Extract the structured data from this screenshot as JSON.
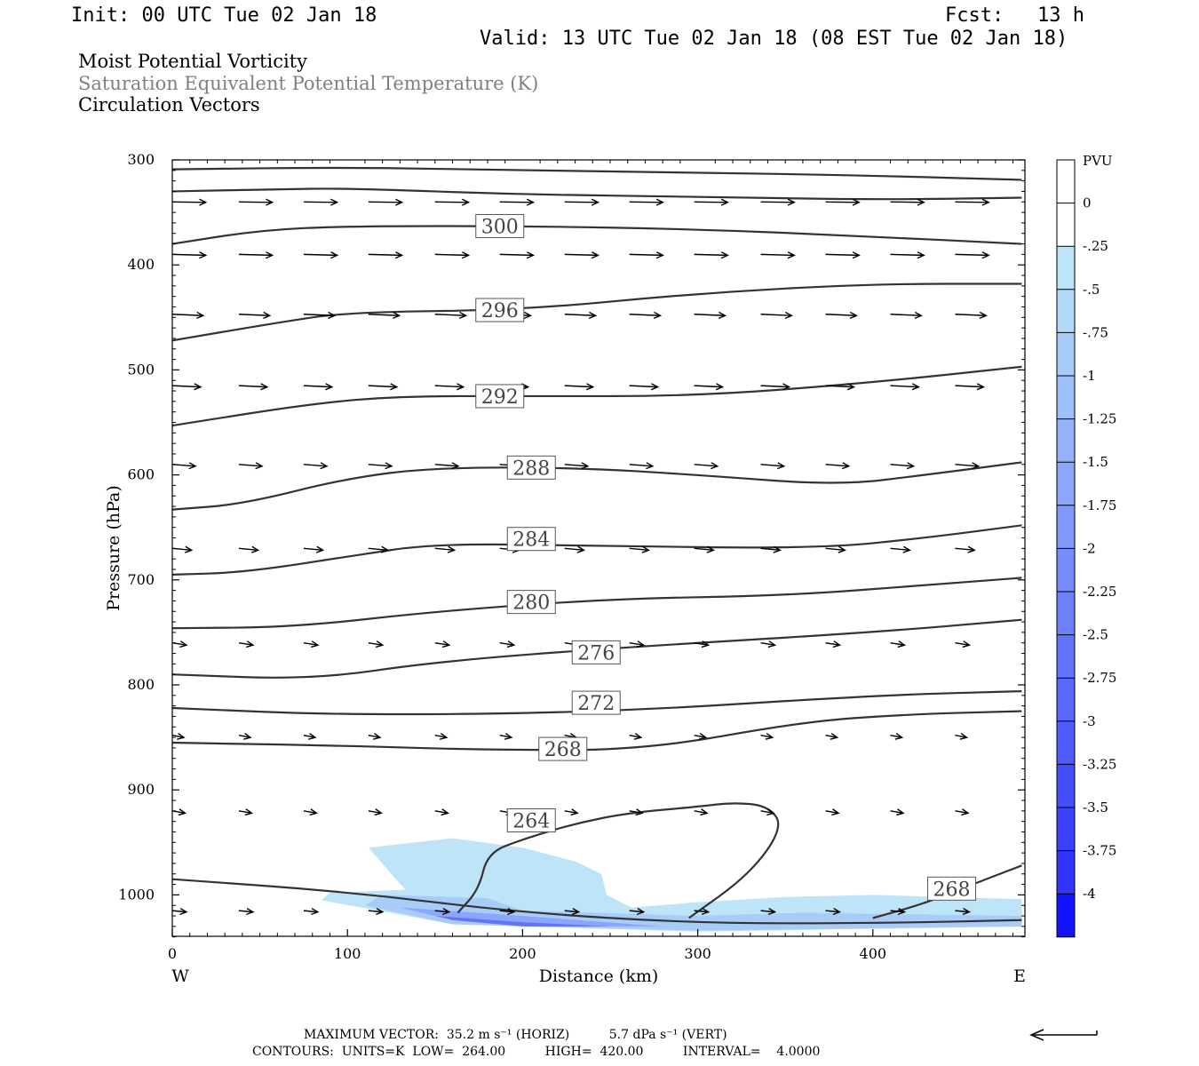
{
  "header": {
    "init": "Init: 00 UTC Tue 02 Jan 18",
    "fcst_label": "Fcst:",
    "fcst_value": "13 h",
    "valid": "Valid: 13 UTC Tue 02 Jan 18 (08 EST Tue 02 Jan 18)"
  },
  "fields": {
    "line1": "Moist Potential Vorticity",
    "line2": "Saturation Equivalent Potential Temperature (K)",
    "line3": "Circulation Vectors"
  },
  "colors": {
    "field2_text": "#7f7f7f",
    "shade_light": "#bde4f7"
  },
  "axes": {
    "xlabel": "Distance (km)",
    "ylabel": "Pressure (hPa)",
    "west": "W",
    "east": "E",
    "x_ticks": [
      "0",
      "100",
      "200",
      "300",
      "400"
    ],
    "y_ticks": [
      "300",
      "400",
      "500",
      "600",
      "700",
      "800",
      "900",
      "1000"
    ]
  },
  "colorbar": {
    "title": "PVU",
    "labels": [
      "0",
      "-.25",
      "-.5",
      "-.75",
      "-1",
      "-1.25",
      "-1.5",
      "-1.75",
      "-2",
      "-2.25",
      "-2.5",
      "-2.75",
      "-3",
      "-3.25",
      "-3.5",
      "-3.75",
      "-4"
    ],
    "colors": [
      "#ffffff",
      "#ffffff",
      "#bde4f7",
      "#b3d8f8",
      "#a9cbf8",
      "#9fbff9",
      "#95b2f9",
      "#8ba6fa",
      "#8199fa",
      "#778dfb",
      "#6d80fb",
      "#6374fc",
      "#5967fc",
      "#4f5bfd",
      "#454efd",
      "#3b42fe",
      "#3135fe",
      "#1212ff"
    ]
  },
  "footer": {
    "line1": "MAXIMUM VECTOR:  35.2 m s⁻¹ (HORIZ)          5.7 dPa s⁻¹ (VERT)",
    "line2": "CONTOURS:  UNITS=K  LOW=  264.00          HIGH=  420.00          INTERVAL=    4.0000"
  },
  "chart_data": {
    "type": "contour",
    "title": "Moist Potential Vorticity",
    "xlabel": "Distance (km)",
    "ylabel": "Pressure (hPa)",
    "xlim": [
      0,
      485
    ],
    "ylim": [
      1040,
      300
    ],
    "contour_labels": [
      {
        "value": "300",
        "x": 187,
        "p": 363
      },
      {
        "value": "296",
        "x": 187,
        "p": 443
      },
      {
        "value": "292",
        "x": 187,
        "p": 525
      },
      {
        "value": "288",
        "x": 205,
        "p": 593
      },
      {
        "value": "284",
        "x": 205,
        "p": 661
      },
      {
        "value": "280",
        "x": 205,
        "p": 721
      },
      {
        "value": "276",
        "x": 242,
        "p": 769
      },
      {
        "value": "272",
        "x": 242,
        "p": 817
      },
      {
        "value": "268",
        "x": 223,
        "p": 861
      },
      {
        "value": "264",
        "x": 205,
        "p": 929
      },
      {
        "value": "268",
        "x": 445,
        "p": 994
      }
    ],
    "contours": [
      [
        [
          0,
          309
        ],
        [
          100,
          307
        ],
        [
          200,
          310
        ],
        [
          300,
          312
        ],
        [
          400,
          315
        ],
        [
          485,
          319
        ]
      ],
      [
        [
          0,
          330
        ],
        [
          60,
          328
        ],
        [
          100,
          327
        ],
        [
          200,
          333
        ],
        [
          300,
          335
        ],
        [
          400,
          338
        ],
        [
          485,
          336
        ]
      ],
      [
        [
          0,
          380
        ],
        [
          50,
          367
        ],
        [
          100,
          363
        ],
        [
          200,
          363
        ],
        [
          300,
          366
        ],
        [
          400,
          373
        ],
        [
          485,
          380
        ]
      ],
      [
        [
          0,
          472
        ],
        [
          60,
          455
        ],
        [
          100,
          445
        ],
        [
          200,
          443
        ],
        [
          300,
          427
        ],
        [
          400,
          418
        ],
        [
          485,
          418
        ]
      ],
      [
        [
          0,
          553
        ],
        [
          80,
          532
        ],
        [
          130,
          525
        ],
        [
          200,
          525
        ],
        [
          300,
          525
        ],
        [
          400,
          512
        ],
        [
          485,
          497
        ]
      ],
      [
        [
          0,
          633
        ],
        [
          40,
          628
        ],
        [
          100,
          603
        ],
        [
          150,
          593
        ],
        [
          230,
          593
        ],
        [
          300,
          600
        ],
        [
          380,
          610
        ],
        [
          430,
          600
        ],
        [
          485,
          588
        ]
      ],
      [
        [
          0,
          695
        ],
        [
          40,
          693
        ],
        [
          100,
          678
        ],
        [
          150,
          665
        ],
        [
          250,
          668
        ],
        [
          370,
          670
        ],
        [
          430,
          660
        ],
        [
          485,
          648
        ]
      ],
      [
        [
          0,
          746
        ],
        [
          70,
          745
        ],
        [
          150,
          730
        ],
        [
          250,
          718
        ],
        [
          350,
          715
        ],
        [
          430,
          705
        ],
        [
          485,
          698
        ]
      ],
      [
        [
          0,
          790
        ],
        [
          80,
          795
        ],
        [
          150,
          778
        ],
        [
          250,
          765
        ],
        [
          400,
          750
        ],
        [
          485,
          738
        ]
      ],
      [
        [
          0,
          822
        ],
        [
          100,
          829
        ],
        [
          250,
          826
        ],
        [
          400,
          810
        ],
        [
          485,
          806
        ]
      ],
      [
        [
          0,
          855
        ],
        [
          100,
          858
        ],
        [
          180,
          862
        ],
        [
          270,
          862
        ],
        [
          360,
          835
        ],
        [
          420,
          828
        ],
        [
          485,
          825
        ]
      ],
      [
        [
          163,
          1017
        ],
        [
          175,
          995
        ],
        [
          180,
          960
        ],
        [
          200,
          947
        ],
        [
          230,
          932
        ],
        [
          260,
          922
        ],
        [
          300,
          916
        ],
        [
          320,
          912
        ],
        [
          340,
          915
        ],
        [
          349,
          935
        ],
        [
          330,
          980
        ],
        [
          295,
          1022
        ]
      ],
      [
        [
          400,
          1022
        ],
        [
          430,
          1008
        ],
        [
          460,
          988
        ],
        [
          485,
          972
        ]
      ],
      [
        [
          0,
          985
        ],
        [
          100,
          997
        ],
        [
          200,
          1017
        ],
        [
          300,
          1027
        ],
        [
          400,
          1027
        ],
        [
          485,
          1024
        ]
      ]
    ],
    "vectors": [
      {
        "p": 340,
        "x": [
          0,
          38,
          75,
          112,
          150,
          187,
          224,
          261,
          298,
          336,
          373,
          410,
          447,
          485
        ],
        "u": 26,
        "w": 0.5
      },
      {
        "p": 390,
        "x": [
          0,
          38,
          75,
          112,
          150,
          187,
          224,
          261,
          298,
          336,
          373,
          410,
          447,
          485
        ],
        "u": 26,
        "w": 1.0
      },
      {
        "p": 447,
        "x": [
          0,
          38,
          75,
          112,
          150,
          187,
          224,
          261,
          298,
          336,
          373,
          410,
          447,
          485
        ],
        "u": 24,
        "w": 1.5
      },
      {
        "p": 515,
        "x": [
          0,
          38,
          75,
          112,
          150,
          187,
          224,
          261,
          298,
          336,
          373,
          410,
          447,
          485
        ],
        "u": 22,
        "w": 1.5
      },
      {
        "p": 590,
        "x": [
          0,
          38,
          75,
          112,
          150,
          187,
          224,
          261,
          298,
          336,
          373,
          410,
          447,
          485
        ],
        "u": 18,
        "w": 2.0
      },
      {
        "p": 670,
        "x": [
          0,
          38,
          75,
          112,
          150,
          187,
          224,
          261,
          298,
          336,
          373,
          410,
          447,
          485
        ],
        "u": 15,
        "w": 2.0
      },
      {
        "p": 760,
        "x": [
          0,
          38,
          75,
          112,
          150,
          187,
          224,
          261,
          298,
          336,
          373,
          410,
          447,
          485
        ],
        "u": 11,
        "w": 2.5
      },
      {
        "p": 848,
        "x": [
          0,
          38,
          75,
          112,
          150,
          187,
          224,
          261,
          298,
          336,
          373,
          410,
          447,
          485
        ],
        "u": 9,
        "w": 2.5
      },
      {
        "p": 920,
        "x": [
          0,
          38,
          75,
          112,
          150,
          187,
          224,
          261,
          298,
          336,
          373,
          410,
          447,
          485
        ],
        "u": 10,
        "w": 2.5
      },
      {
        "p": 1015,
        "x": [
          0,
          38,
          75,
          112,
          150,
          187,
          224,
          261,
          298,
          336,
          373,
          410,
          447,
          485
        ],
        "u": 11,
        "w": 1.5
      }
    ],
    "shading": [
      {
        "level": "-.25",
        "points": [
          [
            112,
            955
          ],
          [
            160,
            946
          ],
          [
            200,
            955
          ],
          [
            230,
            968
          ],
          [
            245,
            980
          ],
          [
            248,
            1000
          ],
          [
            262,
            1012
          ],
          [
            300,
            1007
          ],
          [
            350,
            1002
          ],
          [
            400,
            1000
          ],
          [
            485,
            1004
          ],
          [
            485,
            1030
          ],
          [
            300,
            1035
          ],
          [
            160,
            1028
          ],
          [
            85,
            1005
          ],
          [
            90,
            998
          ],
          [
            133,
            995
          ]
        ]
      },
      {
        "level": "-.75",
        "points": [
          [
            120,
            1000
          ],
          [
            180,
            1003
          ],
          [
            200,
            1015
          ],
          [
            260,
            1018
          ],
          [
            300,
            1020
          ],
          [
            360,
            1017
          ],
          [
            485,
            1020
          ],
          [
            485,
            1030
          ],
          [
            300,
            1034
          ],
          [
            160,
            1028
          ],
          [
            110,
            1010
          ]
        ]
      },
      {
        "level": "-1.5",
        "points": [
          [
            130,
            1012
          ],
          [
            200,
            1020
          ],
          [
            240,
            1025
          ],
          [
            280,
            1030
          ],
          [
            200,
            1030
          ],
          [
            150,
            1020
          ]
        ]
      },
      {
        "level": "-2.5",
        "points": [
          [
            150,
            1020
          ],
          [
            200,
            1026
          ],
          [
            250,
            1030
          ],
          [
            200,
            1030
          ],
          [
            160,
            1024
          ]
        ]
      }
    ]
  }
}
